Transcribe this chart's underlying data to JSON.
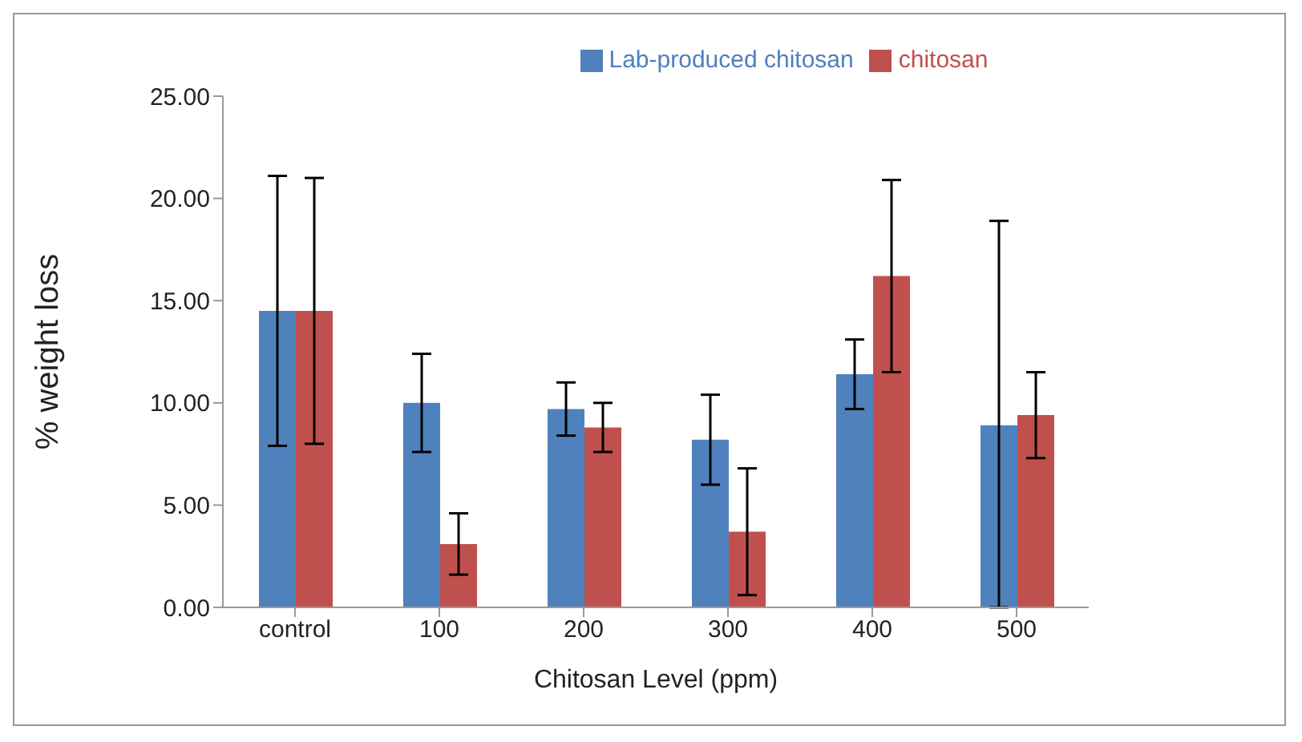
{
  "chart_data": {
    "type": "bar",
    "xlabel": "Chitosan Level (ppm)",
    "ylabel": "% weight loss",
    "categories": [
      "control",
      "100",
      "200",
      "300",
      "400",
      "500"
    ],
    "series": [
      {
        "name": "Lab-produced chitosan",
        "color": "#4f81bd",
        "values": [
          14.5,
          10.0,
          9.7,
          8.2,
          11.4,
          8.9
        ],
        "errors": [
          6.6,
          2.4,
          1.3,
          2.2,
          1.7,
          [
            0,
            18.9
          ]
        ]
      },
      {
        "name": "chitosan",
        "color": "#c0504d",
        "values": [
          14.5,
          3.1,
          8.8,
          3.7,
          16.2,
          9.4
        ],
        "errors": [
          6.5,
          1.5,
          1.2,
          3.1,
          4.7,
          2.1
        ]
      }
    ],
    "ylim": [
      0,
      25
    ],
    "yticks": [
      {
        "value": 0,
        "label": "0.00"
      },
      {
        "value": 5,
        "label": "5.00"
      },
      {
        "value": 10,
        "label": "10.00"
      },
      {
        "value": 15,
        "label": "15.00"
      },
      {
        "value": 20,
        "label": "20.00"
      },
      {
        "value": 25,
        "label": "25.00"
      }
    ],
    "grid": false,
    "legend": "top"
  }
}
